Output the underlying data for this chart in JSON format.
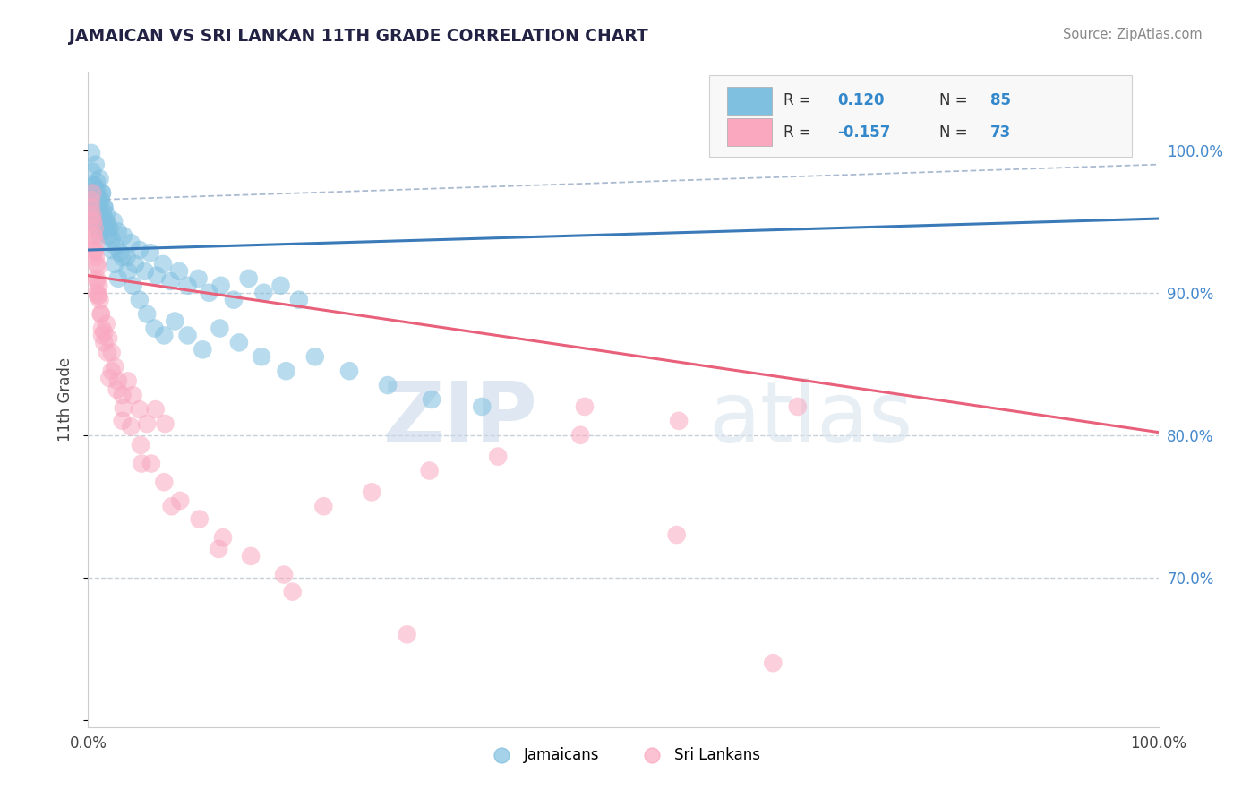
{
  "title": "JAMAICAN VS SRI LANKAN 11TH GRADE CORRELATION CHART",
  "source": "Source: ZipAtlas.com",
  "ylabel": "11th Grade",
  "blue_color": "#7fbfdf",
  "pink_color": "#f9a8c0",
  "blue_line_color": "#3a7ab8",
  "pink_line_color": "#e8607a",
  "dashed_line_color": "#aabbd0",
  "grid_color": "#c8d0d8",
  "ytick_color": "#4488cc",
  "legend_jamaicans": "Jamaicans",
  "legend_srilankans": "Sri Lankans",
  "watermark_zip": "ZIP",
  "watermark_atlas": "atlas",
  "xlim": [
    0.0,
    1.0
  ],
  "ylim": [
    0.595,
    1.055
  ],
  "blue_intercept": 0.93,
  "blue_slope": 0.022,
  "pink_intercept": 0.912,
  "pink_slope": -0.11,
  "blue_dots_x": [
    0.003,
    0.004,
    0.005,
    0.005,
    0.006,
    0.006,
    0.007,
    0.007,
    0.008,
    0.008,
    0.009,
    0.009,
    0.01,
    0.01,
    0.011,
    0.011,
    0.012,
    0.012,
    0.013,
    0.014,
    0.015,
    0.016,
    0.017,
    0.018,
    0.02,
    0.022,
    0.024,
    0.026,
    0.028,
    0.03,
    0.033,
    0.036,
    0.04,
    0.044,
    0.048,
    0.053,
    0.058,
    0.064,
    0.07,
    0.077,
    0.085,
    0.093,
    0.103,
    0.113,
    0.124,
    0.136,
    0.15,
    0.164,
    0.18,
    0.197,
    0.003,
    0.004,
    0.005,
    0.006,
    0.007,
    0.008,
    0.009,
    0.01,
    0.011,
    0.013,
    0.015,
    0.017,
    0.019,
    0.022,
    0.025,
    0.028,
    0.032,
    0.037,
    0.042,
    0.048,
    0.055,
    0.062,
    0.071,
    0.081,
    0.093,
    0.107,
    0.123,
    0.141,
    0.162,
    0.185,
    0.212,
    0.244,
    0.28,
    0.321,
    0.368
  ],
  "blue_dots_y": [
    0.96,
    0.97,
    0.955,
    0.965,
    0.975,
    0.95,
    0.968,
    0.958,
    0.972,
    0.962,
    0.945,
    0.955,
    0.963,
    0.95,
    0.94,
    0.958,
    0.948,
    0.965,
    0.97,
    0.953,
    0.96,
    0.942,
    0.955,
    0.948,
    0.945,
    0.938,
    0.95,
    0.932,
    0.943,
    0.928,
    0.94,
    0.925,
    0.935,
    0.92,
    0.93,
    0.915,
    0.928,
    0.912,
    0.92,
    0.908,
    0.915,
    0.905,
    0.91,
    0.9,
    0.905,
    0.895,
    0.91,
    0.9,
    0.905,
    0.895,
    0.998,
    0.985,
    0.975,
    0.965,
    0.99,
    0.978,
    0.968,
    0.958,
    0.98,
    0.97,
    0.96,
    0.95,
    0.94,
    0.93,
    0.92,
    0.91,
    0.925,
    0.915,
    0.905,
    0.895,
    0.885,
    0.875,
    0.87,
    0.88,
    0.87,
    0.86,
    0.875,
    0.865,
    0.855,
    0.845,
    0.855,
    0.845,
    0.835,
    0.825,
    0.82
  ],
  "pink_dots_x": [
    0.003,
    0.004,
    0.004,
    0.005,
    0.005,
    0.006,
    0.006,
    0.007,
    0.007,
    0.008,
    0.008,
    0.009,
    0.009,
    0.01,
    0.011,
    0.012,
    0.013,
    0.015,
    0.017,
    0.019,
    0.022,
    0.025,
    0.028,
    0.032,
    0.037,
    0.042,
    0.048,
    0.055,
    0.063,
    0.072,
    0.003,
    0.004,
    0.005,
    0.006,
    0.008,
    0.01,
    0.012,
    0.015,
    0.018,
    0.022,
    0.027,
    0.033,
    0.04,
    0.049,
    0.059,
    0.071,
    0.086,
    0.104,
    0.126,
    0.152,
    0.183,
    0.22,
    0.265,
    0.319,
    0.383,
    0.46,
    0.552,
    0.663,
    0.005,
    0.008,
    0.013,
    0.02,
    0.032,
    0.05,
    0.078,
    0.122,
    0.191,
    0.298,
    0.464,
    0.55,
    0.64
  ],
  "pink_dots_y": [
    0.96,
    0.97,
    0.955,
    0.94,
    0.95,
    0.93,
    0.945,
    0.925,
    0.935,
    0.92,
    0.908,
    0.918,
    0.898,
    0.905,
    0.895,
    0.885,
    0.875,
    0.865,
    0.878,
    0.868,
    0.858,
    0.848,
    0.838,
    0.828,
    0.838,
    0.828,
    0.818,
    0.808,
    0.818,
    0.808,
    0.965,
    0.952,
    0.94,
    0.928,
    0.91,
    0.898,
    0.885,
    0.872,
    0.858,
    0.845,
    0.832,
    0.819,
    0.806,
    0.793,
    0.78,
    0.767,
    0.754,
    0.741,
    0.728,
    0.715,
    0.702,
    0.75,
    0.76,
    0.775,
    0.785,
    0.8,
    0.81,
    0.82,
    0.93,
    0.9,
    0.87,
    0.84,
    0.81,
    0.78,
    0.75,
    0.72,
    0.69,
    0.66,
    0.82,
    0.73,
    0.64
  ]
}
